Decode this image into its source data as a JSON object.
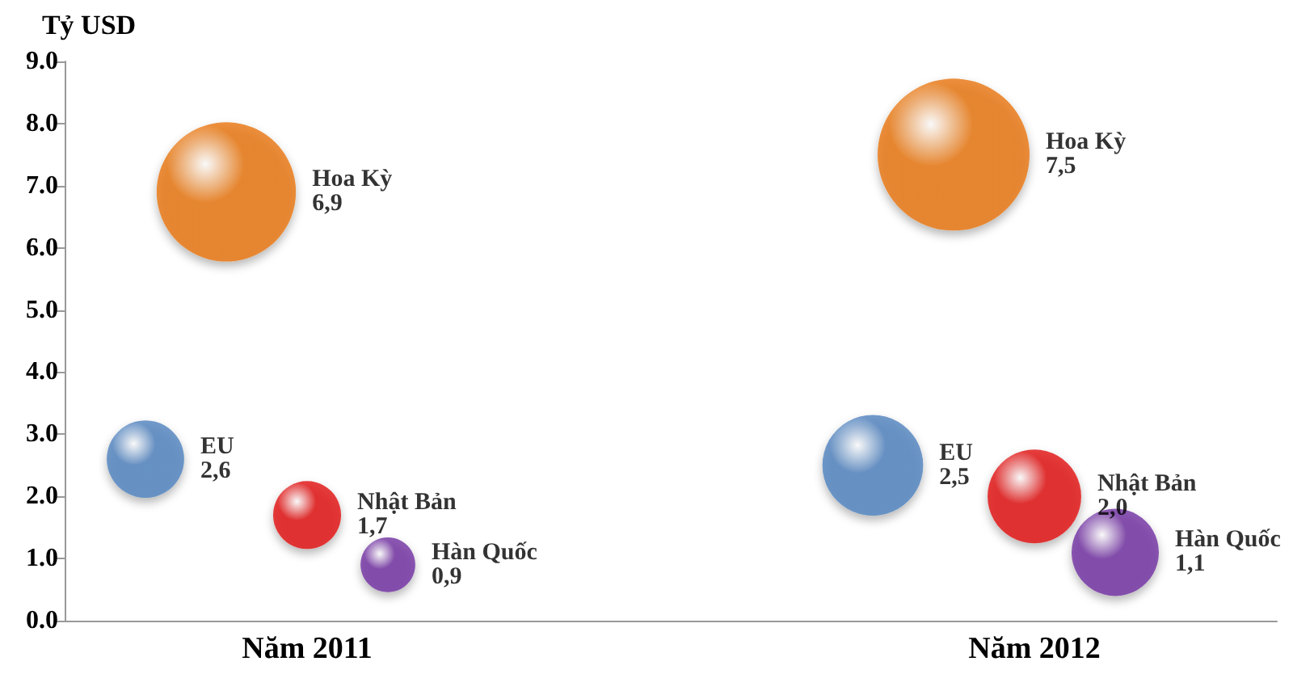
{
  "chart_data": {
    "type": "bubble",
    "ylabel": "Tỷ USD",
    "categories": [
      null,
      null,
      null,
      "Năm 2011",
      null,
      null,
      null,
      null,
      null,
      null,
      null,
      null,
      "Năm 2012",
      null,
      null,
      null
    ],
    "ylim": [
      0,
      9
    ],
    "yticks": [
      {
        "value": 0,
        "label": "0.0"
      },
      {
        "value": 1,
        "label": "1.0"
      },
      {
        "value": 2,
        "label": "2.0"
      },
      {
        "value": 3,
        "label": "3.0"
      },
      {
        "value": 4,
        "label": "4.0"
      },
      {
        "value": 5,
        "label": "5.0"
      },
      {
        "value": 6,
        "label": "6.0"
      },
      {
        "value": 7,
        "label": "7.0"
      },
      {
        "value": 8,
        "label": "8.0"
      },
      {
        "value": 9,
        "label": "9.0"
      }
    ],
    "grid": false,
    "legend": false,
    "series": [
      {
        "name": "Hoa Kỳ",
        "color": "#e8740c",
        "values": [
          null,
          null,
          6.9,
          null,
          null,
          null,
          null,
          null,
          null,
          null,
          null,
          7.5,
          null,
          null,
          null,
          null
        ],
        "sizes": [
          null,
          null,
          0.84,
          null,
          null,
          null,
          null,
          null,
          null,
          null,
          null,
          1,
          null,
          null,
          null,
          null
        ],
        "value_labels": [
          null,
          null,
          "6,9",
          null,
          null,
          null,
          null,
          null,
          null,
          null,
          null,
          "7,5",
          null,
          null,
          null,
          null
        ]
      },
      {
        "name": "EU",
        "color": "#4f81bd",
        "values": [
          null,
          2.6,
          null,
          null,
          null,
          null,
          null,
          null,
          null,
          null,
          2.5,
          null,
          null,
          null,
          null,
          null
        ],
        "sizes": [
          null,
          0.26,
          null,
          null,
          null,
          null,
          null,
          null,
          null,
          null,
          0.44,
          null,
          null,
          null,
          null,
          null
        ],
        "value_labels": [
          null,
          "2,6",
          null,
          null,
          null,
          null,
          null,
          null,
          null,
          null,
          "2,5",
          null,
          null,
          null,
          null,
          null
        ]
      },
      {
        "name": "Nhật Bản",
        "color": "#e01010",
        "values": [
          null,
          null,
          null,
          1.7,
          null,
          null,
          null,
          null,
          null,
          null,
          null,
          null,
          2.0,
          null,
          null,
          null
        ],
        "sizes": [
          null,
          null,
          null,
          0.2,
          null,
          null,
          null,
          null,
          null,
          null,
          null,
          null,
          0.38,
          null,
          null,
          null
        ],
        "value_labels": [
          null,
          null,
          null,
          "1,7",
          null,
          null,
          null,
          null,
          null,
          null,
          null,
          null,
          "2,0",
          null,
          null,
          null
        ]
      },
      {
        "name": "Hàn Quốc",
        "color": "#7030a0",
        "values": [
          null,
          null,
          null,
          null,
          0.9,
          null,
          null,
          null,
          null,
          null,
          null,
          null,
          null,
          1.1,
          null,
          null
        ],
        "sizes": [
          null,
          null,
          null,
          null,
          0.13,
          null,
          null,
          null,
          null,
          null,
          null,
          null,
          null,
          0.33,
          null,
          null
        ],
        "value_labels": [
          null,
          null,
          null,
          null,
          "0,9",
          null,
          null,
          null,
          null,
          null,
          null,
          null,
          null,
          "1,1",
          null,
          null
        ]
      }
    ]
  }
}
